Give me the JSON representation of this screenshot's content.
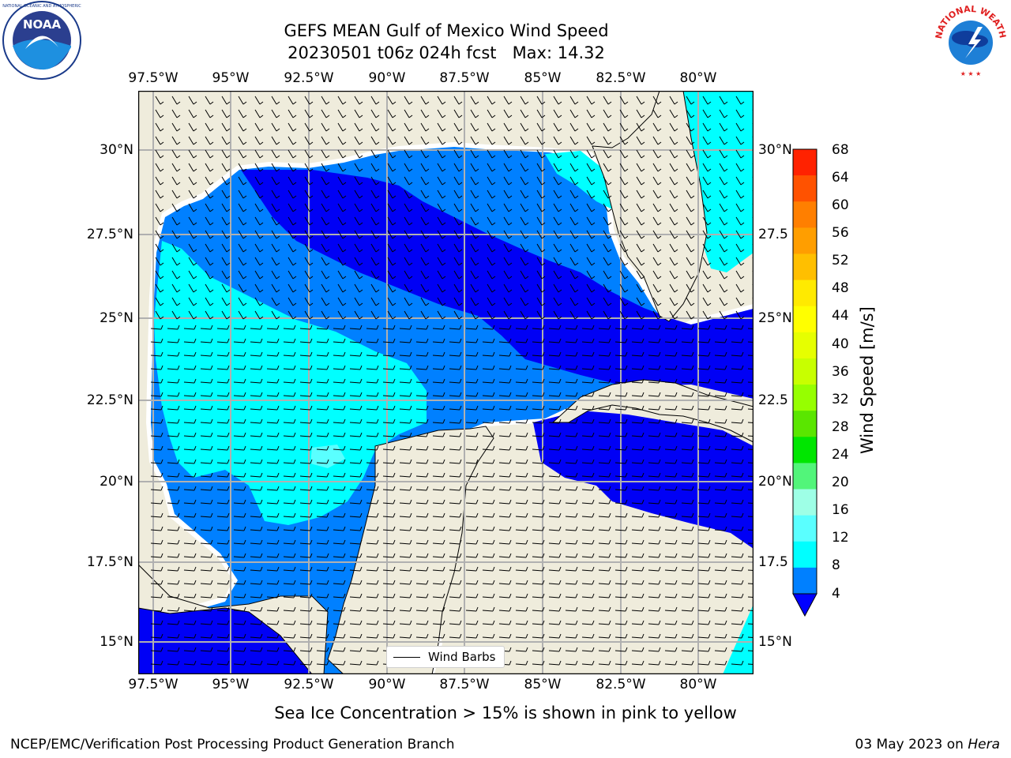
{
  "title": {
    "line1": "GEFS MEAN Gulf of Mexico Wind Speed",
    "line2": "20230501 t06z 024h fcst   Max: 14.32"
  },
  "map": {
    "lon_ticks": [
      "97.5°W",
      "95°W",
      "92.5°W",
      "90°W",
      "87.5°W",
      "85°W",
      "82.5°W",
      "80°W"
    ],
    "lat_ticks_left": [
      "30°N",
      "27.5°N",
      "25°N",
      "22.5°N",
      "20°N",
      "17.5°N",
      "15°N"
    ],
    "lat_ticks_right": [
      "30°N",
      "27.5",
      "25°N",
      "22.5",
      "20°N",
      "17.5",
      "15°N"
    ],
    "colors": {
      "land": "#efecdc",
      "ocean_white": "#ffffff",
      "grid": "#b0b0b0"
    },
    "zones": {
      "band_4_8": "#0080ff",
      "band_lt_4": "#0000f5",
      "band_8_12": "#00ffff",
      "band_12_16": "#40ffff"
    }
  },
  "legend": {
    "label": "Wind Barbs"
  },
  "colorbar": {
    "label": "Wind Speed [m/s]",
    "ticks": [
      "68",
      "64",
      "60",
      "56",
      "52",
      "48",
      "44",
      "40",
      "36",
      "32",
      "28",
      "24",
      "20",
      "16",
      "12",
      "8",
      "4"
    ],
    "colors_top_to_bottom": [
      "#ff0000",
      "#ff2200",
      "#ff5200",
      "#ff7f00",
      "#ff9e00",
      "#ffbf00",
      "#ffea00",
      "#ffff00",
      "#e6ff00",
      "#c8ff00",
      "#96ff00",
      "#5ae600",
      "#00e600",
      "#52f57a",
      "#9effe6",
      "#5affff",
      "#00ffff",
      "#0080ff"
    ],
    "extend_color": "#0000ff"
  },
  "note": "Sea Ice Concentration > 15% is shown in pink to yellow",
  "footer": {
    "left": "NCEP/EMC/Verification Post Processing Product Generation Branch",
    "date": "03 May 2023 on ",
    "machine": "Hera"
  },
  "logos": {
    "noaa": {
      "text": "NOAA",
      "icon": "noaa-logo-icon"
    },
    "nws": {
      "text": "NATIONAL WEATHER SERVICE",
      "icon": "nws-logo-icon"
    }
  }
}
